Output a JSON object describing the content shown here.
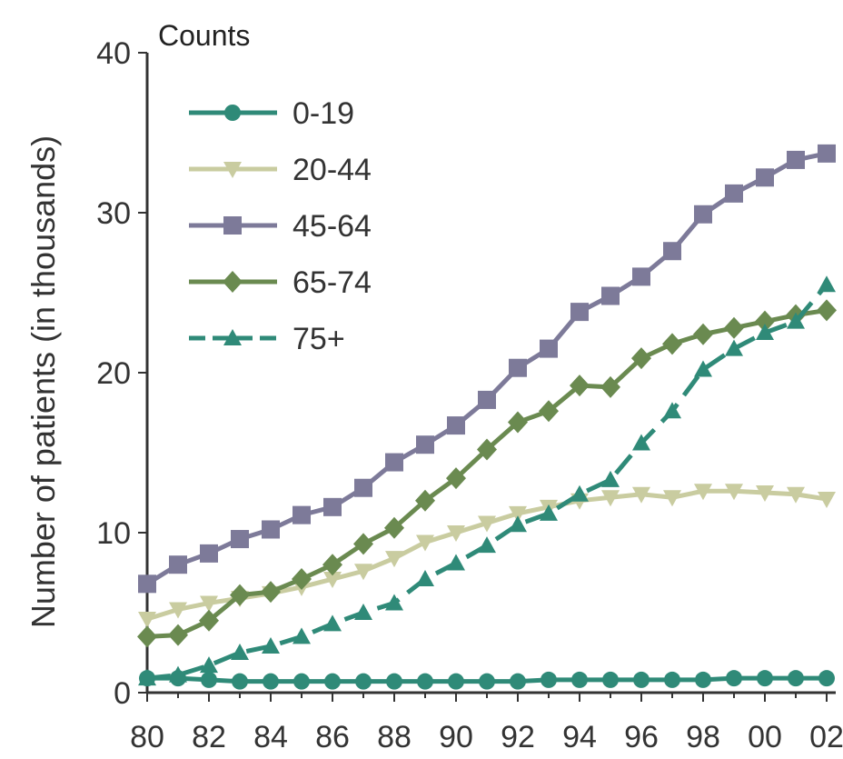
{
  "chart_data": {
    "type": "line",
    "corner_label": "Counts",
    "ylabel": "Number of patients (in thousands)",
    "xlabel": "",
    "ylim": [
      0,
      40
    ],
    "yticks": [
      "0",
      "10",
      "20",
      "30",
      "40"
    ],
    "xtick_labels": [
      "80",
      "82",
      "84",
      "86",
      "88",
      "90",
      "92",
      "94",
      "96",
      "98",
      "00",
      "02"
    ],
    "x": [
      1980,
      1981,
      1982,
      1983,
      1984,
      1985,
      1986,
      1987,
      1988,
      1989,
      1990,
      1991,
      1992,
      1993,
      1994,
      1995,
      1996,
      1997,
      1998,
      1999,
      2000,
      2001,
      2002
    ],
    "legend_position": "top-left",
    "series": [
      {
        "name": "0-19",
        "color": "#2f8a78",
        "marker": "circle",
        "dashed": false,
        "values": [
          0.9,
          0.9,
          0.8,
          0.7,
          0.7,
          0.7,
          0.7,
          0.7,
          0.7,
          0.7,
          0.7,
          0.7,
          0.7,
          0.8,
          0.8,
          0.8,
          0.8,
          0.8,
          0.8,
          0.9,
          0.9,
          0.9,
          0.9
        ]
      },
      {
        "name": "20-44",
        "color": "#c9cca0",
        "marker": "triangle-down",
        "dashed": false,
        "values": [
          4.6,
          5.2,
          5.6,
          5.9,
          6.2,
          6.6,
          7.1,
          7.6,
          8.4,
          9.4,
          10.0,
          10.6,
          11.2,
          11.6,
          12.0,
          12.2,
          12.4,
          12.2,
          12.6,
          12.6,
          12.5,
          12.4,
          12.1
        ]
      },
      {
        "name": "45-64",
        "color": "#7d7a99",
        "marker": "square",
        "dashed": false,
        "values": [
          6.8,
          8.0,
          8.7,
          9.6,
          10.2,
          11.1,
          11.6,
          12.8,
          14.4,
          15.5,
          16.7,
          18.3,
          20.3,
          21.5,
          23.8,
          24.8,
          26.0,
          27.6,
          29.9,
          31.2,
          32.2,
          33.3,
          33.7
        ]
      },
      {
        "name": "65-74",
        "color": "#6a8a50",
        "marker": "diamond",
        "dashed": false,
        "values": [
          3.5,
          3.6,
          4.5,
          6.1,
          6.3,
          7.1,
          8.0,
          9.3,
          10.3,
          12.0,
          13.4,
          15.2,
          16.9,
          17.6,
          19.2,
          19.1,
          20.9,
          21.8,
          22.4,
          22.8,
          23.2,
          23.6,
          23.9
        ]
      },
      {
        "name": "75+",
        "color": "#2f8a78",
        "marker": "triangle-up",
        "dashed": true,
        "values": [
          0.9,
          1.1,
          1.7,
          2.5,
          2.9,
          3.5,
          4.3,
          5.0,
          5.6,
          7.1,
          8.1,
          9.2,
          10.5,
          11.2,
          12.4,
          13.3,
          15.6,
          17.6,
          20.2,
          21.5,
          22.5,
          23.2,
          25.5
        ]
      }
    ]
  }
}
